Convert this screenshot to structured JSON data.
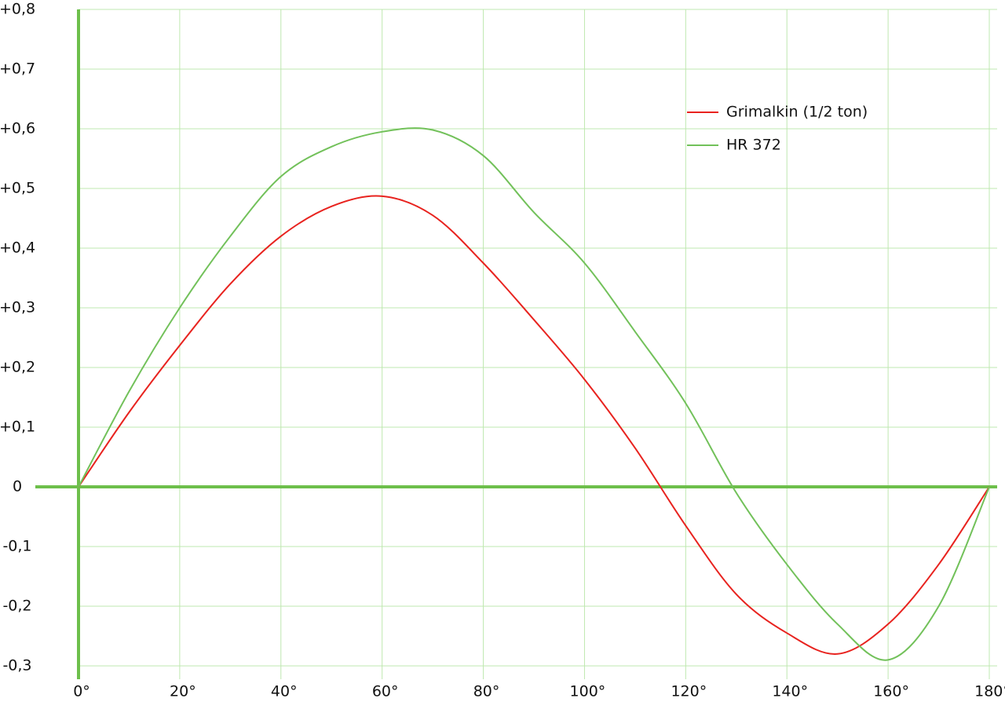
{
  "chart_data": {
    "type": "line",
    "x": [
      0,
      10,
      20,
      30,
      40,
      50,
      60,
      70,
      80,
      90,
      100,
      110,
      120,
      130,
      140,
      150,
      160,
      170,
      180
    ],
    "series": [
      {
        "name": "Grimalkin (1/2 ton)",
        "color": "#e8231f",
        "values": [
          0,
          0.125,
          0.237,
          0.34,
          0.42,
          0.47,
          0.487,
          0.455,
          0.375,
          0.28,
          0.18,
          0.065,
          -0.065,
          -0.18,
          -0.245,
          -0.28,
          -0.23,
          -0.13,
          0
        ]
      },
      {
        "name": "HR 372",
        "color": "#72c15a",
        "values": [
          0,
          0.16,
          0.3,
          0.42,
          0.52,
          0.57,
          0.595,
          0.598,
          0.555,
          0.46,
          0.375,
          0.26,
          0.14,
          -0.01,
          -0.13,
          -0.23,
          -0.29,
          -0.2,
          0
        ]
      }
    ],
    "xlim": [
      0,
      180
    ],
    "xticks": [
      {
        "value": 0,
        "label": "0°"
      },
      {
        "value": 20,
        "label": "20°"
      },
      {
        "value": 40,
        "label": "40°"
      },
      {
        "value": 60,
        "label": "60°"
      },
      {
        "value": 80,
        "label": "80°"
      },
      {
        "value": 100,
        "label": "100°"
      },
      {
        "value": 120,
        "label": "120°"
      },
      {
        "value": 140,
        "label": "140°"
      },
      {
        "value": 160,
        "label": "160°"
      },
      {
        "value": 180,
        "label": "180°"
      }
    ],
    "ylim": [
      -0.3,
      0.8
    ],
    "yticks": [
      {
        "value": -0.3,
        "label": "-0,3"
      },
      {
        "value": -0.2,
        "label": "-0,2"
      },
      {
        "value": -0.1,
        "label": "-0,1"
      },
      0,
      {
        "value": 0.1,
        "label": "+0,1"
      },
      {
        "value": 0.2,
        "label": "+0,2"
      },
      {
        "value": 0.3,
        "label": "+0,3"
      },
      {
        "value": 0.4,
        "label": "+0,4"
      },
      {
        "value": 0.5,
        "label": "+0,5"
      },
      {
        "value": 0.6,
        "label": "+0,6"
      },
      {
        "value": 0.7,
        "label": "+0,7"
      },
      {
        "value": 0.8,
        "label": "+0,8"
      }
    ],
    "grid": true,
    "legend": "upper right"
  }
}
